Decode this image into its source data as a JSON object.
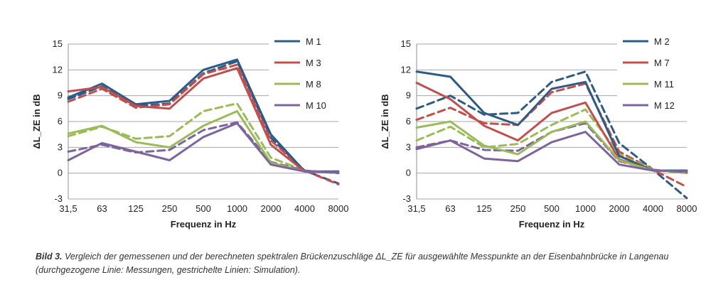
{
  "colors": {
    "blue": "#2d5b85",
    "red": "#c0504d",
    "green": "#9bbb59",
    "purple": "#7e649e",
    "grid": "#a6a6a6"
  },
  "chart_data": [
    {
      "type": "line",
      "categories": [
        "31,5",
        "63",
        "125",
        "250",
        "500",
        "1000",
        "2000",
        "4000",
        "8000"
      ],
      "ylabel": "ΔL_ZE in dB",
      "xlabel": "Frequenz in  Hz",
      "ylim": [
        -3,
        15
      ],
      "yticks": [
        -3,
        0,
        3,
        6,
        9,
        12,
        15
      ],
      "grid": true,
      "legend_position": "right",
      "legend": [
        "M 1",
        "M 3",
        "M 8",
        "M 10"
      ],
      "series": [
        {
          "name": "M 1",
          "color": "blue",
          "style": "solid",
          "values": [
            8.8,
            10.4,
            8.0,
            8.4,
            12.0,
            13.2,
            4.5,
            0.2,
            0.2
          ]
        },
        {
          "name": "M 1",
          "color": "blue",
          "style": "dashed",
          "values": [
            8.6,
            10.1,
            7.8,
            8.1,
            11.6,
            13.0,
            4.1,
            0.3,
            -1.2
          ]
        },
        {
          "name": "M 3",
          "color": "red",
          "style": "solid",
          "values": [
            9.5,
            10.0,
            7.8,
            7.5,
            11.0,
            12.2,
            3.3,
            0.2,
            0.1
          ]
        },
        {
          "name": "M 3",
          "color": "red",
          "style": "dashed",
          "values": [
            8.3,
            9.8,
            7.6,
            8.0,
            11.5,
            12.6,
            3.8,
            0.3,
            -1.3
          ]
        },
        {
          "name": "M 8",
          "color": "green",
          "style": "solid",
          "values": [
            4.6,
            5.5,
            3.6,
            3.0,
            5.5,
            7.2,
            1.2,
            0.2,
            0.1
          ]
        },
        {
          "name": "M 8",
          "color": "green",
          "style": "dashed",
          "values": [
            4.3,
            5.4,
            4.0,
            4.3,
            7.2,
            8.1,
            1.8,
            0.3,
            0.0
          ]
        },
        {
          "name": "M 10",
          "color": "purple",
          "style": "solid",
          "values": [
            1.5,
            3.5,
            2.5,
            1.5,
            4.2,
            5.8,
            1.0,
            0.2,
            0.1
          ]
        },
        {
          "name": "M 10",
          "color": "purple",
          "style": "dashed",
          "values": [
            2.5,
            3.3,
            2.4,
            2.7,
            5.0,
            5.9,
            1.3,
            0.3,
            0.0
          ]
        }
      ]
    },
    {
      "type": "line",
      "categories": [
        "31,5",
        "63",
        "125",
        "250",
        "500",
        "1000",
        "2000",
        "4000",
        "8000"
      ],
      "ylabel": "ΔL_ZE in dB",
      "xlabel": "Frequenz in  Hz",
      "ylim": [
        -3,
        15
      ],
      "yticks": [
        -3,
        0,
        3,
        6,
        9,
        12,
        15
      ],
      "grid": true,
      "legend_position": "right",
      "legend": [
        "M 2",
        "M 7",
        "M 11",
        "M 12"
      ],
      "series": [
        {
          "name": "M 2",
          "color": "blue",
          "style": "solid",
          "values": [
            11.8,
            11.2,
            7.0,
            5.6,
            9.8,
            10.6,
            2.0,
            0.3,
            0.3
          ]
        },
        {
          "name": "M 2",
          "color": "blue",
          "style": "dashed",
          "values": [
            7.5,
            9.0,
            6.8,
            7.0,
            10.6,
            11.8,
            3.5,
            0.4,
            -2.9
          ]
        },
        {
          "name": "M 7",
          "color": "red",
          "style": "solid",
          "values": [
            10.5,
            8.6,
            5.5,
            3.8,
            7.0,
            8.2,
            1.6,
            0.3,
            0.2
          ]
        },
        {
          "name": "M 7",
          "color": "red",
          "style": "dashed",
          "values": [
            6.2,
            7.6,
            5.8,
            5.6,
            9.4,
            10.4,
            2.5,
            0.4,
            -1.6
          ]
        },
        {
          "name": "M 11",
          "color": "green",
          "style": "solid",
          "values": [
            5.3,
            6.0,
            3.2,
            2.2,
            4.8,
            6.0,
            1.5,
            0.3,
            0.2
          ]
        },
        {
          "name": "M 11",
          "color": "green",
          "style": "dashed",
          "values": [
            3.8,
            5.4,
            3.0,
            3.4,
            5.6,
            7.4,
            2.2,
            0.4,
            0.0
          ]
        },
        {
          "name": "M 12",
          "color": "purple",
          "style": "solid",
          "values": [
            2.8,
            3.8,
            1.7,
            1.4,
            3.6,
            4.8,
            1.0,
            0.3,
            0.2
          ]
        },
        {
          "name": "M 12",
          "color": "purple",
          "style": "dashed",
          "values": [
            3.0,
            3.8,
            2.7,
            2.6,
            4.8,
            5.8,
            1.4,
            0.4,
            0.1
          ]
        }
      ]
    }
  ],
  "caption": {
    "lead": "Bild 3.",
    "text": " Vergleich der gemessenen und der berechneten spektralen Brückenzuschläge ΔL_ZE für ausgewählte Messpunkte an der Eisenbahnbrücke in Langenau (durchgezogene Linie: Messungen, gestrichelte Linien: Simulation)."
  }
}
